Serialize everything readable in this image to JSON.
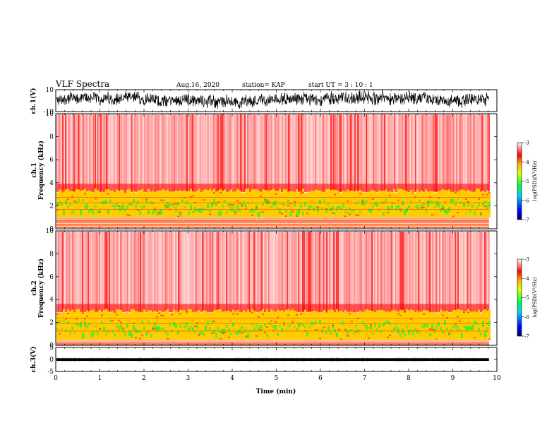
{
  "header": {
    "title": "VLF Spectra",
    "date": "Aug.16, 2020",
    "station": "station= KAP",
    "start": "start  UT =   3 : 10 : 1"
  },
  "chart_data": [
    {
      "id": "ch1-waveform",
      "type": "line",
      "ylabel": "ch.1(V)",
      "ylim": [
        -10,
        10
      ],
      "yticks": [
        10,
        -10
      ],
      "xlim": [
        0,
        10
      ],
      "data_extent_min": [
        0,
        9.82
      ],
      "description_values": {
        "typical_amplitude_v": [
          -5,
          8
        ]
      }
    },
    {
      "id": "ch1-spectrogram",
      "type": "heatmap",
      "ylabel": "ch.1\nFrequency (kHz)",
      "ylim": [
        0,
        10
      ],
      "yticks": [
        0,
        2,
        4,
        6,
        8,
        10
      ],
      "xlim": [
        0,
        10
      ],
      "data_extent_min": [
        0,
        9.82
      ],
      "colorbar": {
        "label": "log(PSD)(V²/Hz)",
        "range": [
          -7,
          -3
        ],
        "ticks": [
          -3,
          -4,
          -5,
          -6,
          -7
        ],
        "colors": [
          "#000080",
          "#0000ff",
          "#00ffff",
          "#00ff00",
          "#ffff00",
          "#ff0000",
          "#ffffff"
        ]
      },
      "band_kHz": {
        "intense_low": 1.0,
        "intense_high": 3.3
      }
    },
    {
      "id": "ch2-spectrogram",
      "type": "heatmap",
      "ylabel": "ch.2\nFrequency (kHz)",
      "ylim": [
        0,
        10
      ],
      "yticks": [
        0,
        2,
        4,
        6,
        8,
        10
      ],
      "xlim": [
        0,
        10
      ],
      "data_extent_min": [
        0,
        9.82
      ],
      "colorbar": {
        "label": "log(PSD)(V²/Hz)",
        "range": [
          -7,
          -3
        ],
        "ticks": [
          -3,
          -4,
          -5,
          -6,
          -7
        ],
        "colors": [
          "#000080",
          "#0000ff",
          "#00ffff",
          "#00ff00",
          "#ffff00",
          "#ff0000",
          "#ffffff"
        ]
      },
      "band_kHz": {
        "intense_low": 0.5,
        "intense_high": 3.0
      }
    },
    {
      "id": "ch3-waveform",
      "type": "line",
      "ylabel": "ch.3(V)",
      "ylim": [
        -5,
        5
      ],
      "yticks": [
        5,
        0,
        -5
      ],
      "xlim": [
        0,
        10
      ],
      "xticks": [
        0,
        1,
        2,
        3,
        4,
        5,
        6,
        7,
        8,
        9,
        10
      ],
      "xlabel": "Time (min)",
      "data_extent_min": [
        0,
        9.82
      ],
      "description_values": {
        "band_v": [
          -0.6,
          0.5
        ]
      }
    }
  ]
}
